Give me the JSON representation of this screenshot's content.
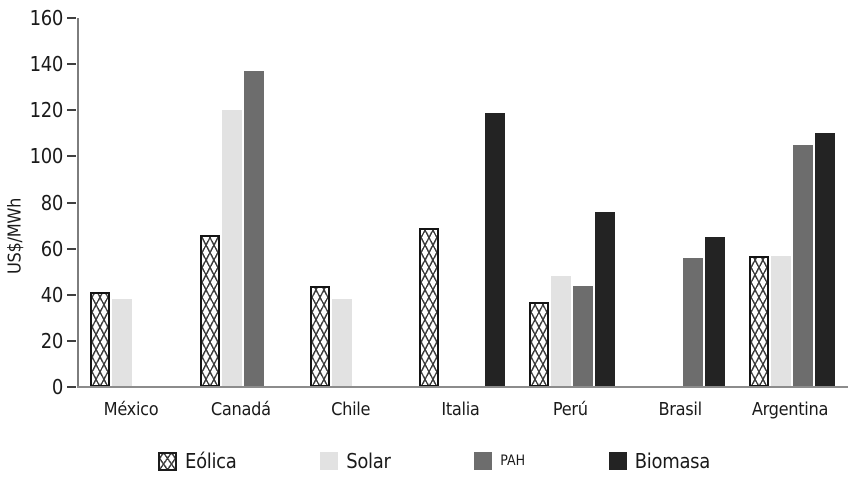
{
  "chart_data": {
    "type": "bar",
    "title": "",
    "xlabel": "",
    "ylabel": "US$/MWh",
    "categories": [
      "México",
      "Canadá",
      "Chile",
      "Italia",
      "Perú",
      "Brasil",
      "Argentina"
    ],
    "series": [
      {
        "name": "Eólica",
        "swatch": "crosshatch",
        "values": [
          41,
          66,
          44,
          69,
          37,
          null,
          57
        ]
      },
      {
        "name": "Solar",
        "color": "#e2e2e2",
        "values": [
          38,
          120,
          38,
          null,
          48,
          null,
          57
        ]
      },
      {
        "name": "PAH",
        "color": "#6d6d6d",
        "small_label": true,
        "values": [
          null,
          137,
          null,
          null,
          44,
          56,
          105
        ]
      },
      {
        "name": "Biomasa",
        "color": "#232323",
        "values": [
          null,
          null,
          null,
          119,
          76,
          65,
          110
        ]
      }
    ],
    "ylim": [
      0,
      160
    ],
    "yticks": [
      0,
      20,
      40,
      60,
      80,
      100,
      120,
      140,
      160
    ],
    "grid": false,
    "legend_position": "bottom"
  },
  "colors": {
    "axis_line": "#8c8c8c",
    "tick_mark": "#3f3f3f",
    "label_text": "#1a1a1a"
  }
}
